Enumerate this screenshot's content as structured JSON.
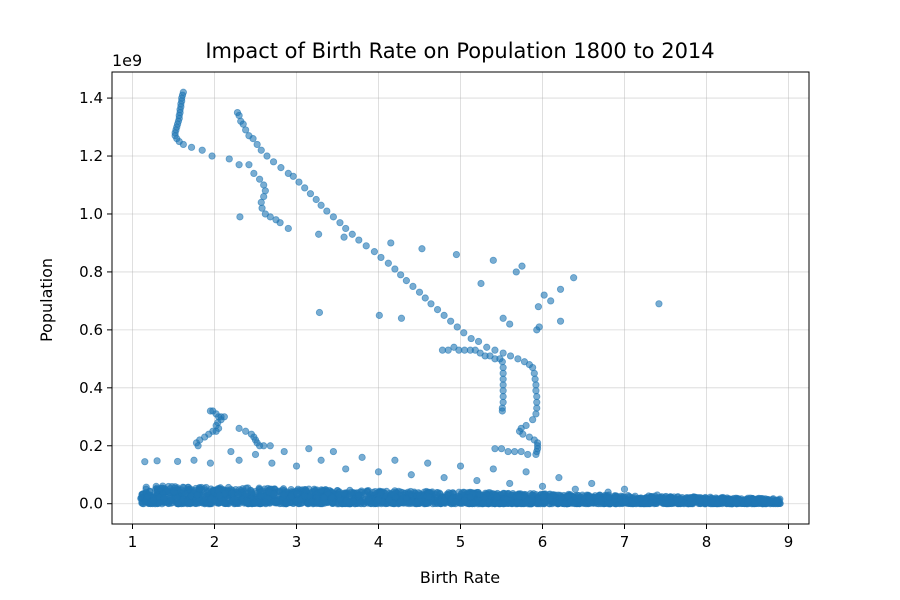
{
  "chart_data": {
    "type": "scatter",
    "title": "Impact of Birth Rate on Population 1800 to 2014",
    "xlabel": "Birth Rate",
    "ylabel": "Population",
    "y_scale_label": "1e9",
    "xlim": [
      0.75,
      9.25
    ],
    "ylim": [
      -0.07,
      1.49
    ],
    "xticks": [
      1,
      2,
      3,
      4,
      5,
      6,
      7,
      8,
      9
    ],
    "yticks": [
      0.0,
      0.2,
      0.4,
      0.6,
      0.8,
      1.0,
      1.2,
      1.4
    ],
    "ytick_labels": [
      "0.0",
      "0.2",
      "0.4",
      "0.6",
      "0.8",
      "1.0",
      "1.2",
      "1.4"
    ],
    "y_units": "billions (x 1e9)",
    "grid": true,
    "marker_color": "#1f77b4",
    "marker_opacity": 0.6,
    "series": [
      {
        "points": [
          [
            1.62,
            1.42
          ],
          [
            1.61,
            1.41
          ],
          [
            1.6,
            1.4
          ],
          [
            1.6,
            1.39
          ],
          [
            1.59,
            1.38
          ],
          [
            1.59,
            1.37
          ],
          [
            1.58,
            1.36
          ],
          [
            1.58,
            1.35
          ],
          [
            1.57,
            1.34
          ],
          [
            1.57,
            1.33
          ],
          [
            1.56,
            1.32
          ],
          [
            1.55,
            1.31
          ],
          [
            1.54,
            1.3
          ],
          [
            1.53,
            1.29
          ],
          [
            1.52,
            1.28
          ],
          [
            1.52,
            1.27
          ],
          [
            1.54,
            1.26
          ],
          [
            1.57,
            1.25
          ],
          [
            1.62,
            1.24
          ],
          [
            1.72,
            1.23
          ],
          [
            1.85,
            1.22
          ],
          [
            1.97,
            1.2
          ],
          [
            2.18,
            1.19
          ],
          [
            2.3,
            1.17
          ],
          [
            2.28,
            1.35
          ],
          [
            2.3,
            1.34
          ],
          [
            2.32,
            1.32
          ],
          [
            2.35,
            1.31
          ],
          [
            2.38,
            1.29
          ],
          [
            2.42,
            1.27
          ],
          [
            2.47,
            1.26
          ],
          [
            2.52,
            1.24
          ],
          [
            2.57,
            1.22
          ],
          [
            2.64,
            1.2
          ],
          [
            2.72,
            1.18
          ],
          [
            2.81,
            1.16
          ],
          [
            2.9,
            1.14
          ],
          [
            2.96,
            1.13
          ],
          [
            3.03,
            1.11
          ],
          [
            3.1,
            1.09
          ],
          [
            3.17,
            1.07
          ],
          [
            3.24,
            1.05
          ],
          [
            3.3,
            1.03
          ],
          [
            3.37,
            1.01
          ],
          [
            3.45,
            0.99
          ],
          [
            3.53,
            0.97
          ],
          [
            3.6,
            0.95
          ],
          [
            3.68,
            0.93
          ],
          [
            3.76,
            0.91
          ],
          [
            3.85,
            0.89
          ],
          [
            3.95,
            0.87
          ],
          [
            4.03,
            0.85
          ],
          [
            4.12,
            0.83
          ],
          [
            4.2,
            0.81
          ],
          [
            4.27,
            0.79
          ],
          [
            4.34,
            0.77
          ],
          [
            4.42,
            0.75
          ],
          [
            4.5,
            0.73
          ],
          [
            4.57,
            0.71
          ],
          [
            4.64,
            0.69
          ],
          [
            4.72,
            0.67
          ],
          [
            4.8,
            0.65
          ],
          [
            4.88,
            0.63
          ],
          [
            4.96,
            0.61
          ],
          [
            5.04,
            0.59
          ],
          [
            5.13,
            0.57
          ],
          [
            5.22,
            0.56
          ],
          [
            5.32,
            0.54
          ],
          [
            5.42,
            0.53
          ],
          [
            5.52,
            0.52
          ],
          [
            5.61,
            0.51
          ],
          [
            5.7,
            0.5
          ],
          [
            5.78,
            0.49
          ],
          [
            5.84,
            0.48
          ],
          [
            5.88,
            0.47
          ],
          [
            5.9,
            0.45
          ],
          [
            5.91,
            0.43
          ],
          [
            5.92,
            0.41
          ],
          [
            5.92,
            0.39
          ],
          [
            5.93,
            0.37
          ],
          [
            5.93,
            0.35
          ],
          [
            5.93,
            0.33
          ],
          [
            5.92,
            0.31
          ],
          [
            5.88,
            0.29
          ],
          [
            5.8,
            0.27
          ],
          [
            5.74,
            0.26
          ],
          [
            5.72,
            0.25
          ],
          [
            5.76,
            0.24
          ],
          [
            5.84,
            0.23
          ],
          [
            5.9,
            0.22
          ],
          [
            5.94,
            0.21
          ],
          [
            5.94,
            0.2
          ],
          [
            5.94,
            0.19
          ],
          [
            5.93,
            0.18
          ],
          [
            5.92,
            0.17
          ],
          [
            2.42,
            1.17
          ],
          [
            2.48,
            1.14
          ],
          [
            2.55,
            1.12
          ],
          [
            2.6,
            1.1
          ],
          [
            2.62,
            1.08
          ],
          [
            2.6,
            1.06
          ],
          [
            2.57,
            1.04
          ],
          [
            2.58,
            1.02
          ],
          [
            2.62,
            1.0
          ],
          [
            2.68,
            0.99
          ],
          [
            2.75,
            0.98
          ],
          [
            2.8,
            0.97
          ],
          [
            2.9,
            0.95
          ],
          [
            2.31,
            0.99
          ],
          [
            3.27,
            0.93
          ],
          [
            3.58,
            0.92
          ],
          [
            4.15,
            0.9
          ],
          [
            4.53,
            0.88
          ],
          [
            4.95,
            0.86
          ],
          [
            5.25,
            0.76
          ],
          [
            5.4,
            0.84
          ],
          [
            5.68,
            0.8
          ],
          [
            5.75,
            0.82
          ],
          [
            5.52,
            0.64
          ],
          [
            5.6,
            0.62
          ],
          [
            5.95,
            0.68
          ],
          [
            6.02,
            0.72
          ],
          [
            6.1,
            0.7
          ],
          [
            6.22,
            0.74
          ],
          [
            6.38,
            0.78
          ],
          [
            6.22,
            0.63
          ],
          [
            5.96,
            0.61
          ],
          [
            5.93,
            0.6
          ],
          [
            7.42,
            0.69
          ],
          [
            3.28,
            0.66
          ],
          [
            4.01,
            0.65
          ],
          [
            4.28,
            0.64
          ],
          [
            4.78,
            0.53
          ],
          [
            4.85,
            0.53
          ],
          [
            4.92,
            0.54
          ],
          [
            4.98,
            0.53
          ],
          [
            5.05,
            0.53
          ],
          [
            5.12,
            0.53
          ],
          [
            5.18,
            0.53
          ],
          [
            5.24,
            0.52
          ],
          [
            5.3,
            0.51
          ],
          [
            5.36,
            0.51
          ],
          [
            5.42,
            0.5
          ],
          [
            5.48,
            0.5
          ],
          [
            5.51,
            0.49
          ],
          [
            5.52,
            0.47
          ],
          [
            5.52,
            0.45
          ],
          [
            5.52,
            0.43
          ],
          [
            5.52,
            0.41
          ],
          [
            5.52,
            0.39
          ],
          [
            5.52,
            0.37
          ],
          [
            5.52,
            0.35
          ],
          [
            5.51,
            0.33
          ],
          [
            5.51,
            0.32
          ],
          [
            1.95,
            0.32
          ],
          [
            1.98,
            0.32
          ],
          [
            2.02,
            0.31
          ],
          [
            2.05,
            0.3
          ],
          [
            2.08,
            0.3
          ],
          [
            2.12,
            0.3
          ],
          [
            2.08,
            0.29
          ],
          [
            2.04,
            0.28
          ],
          [
            2.02,
            0.27
          ],
          [
            2.05,
            0.26
          ],
          [
            2.02,
            0.25
          ],
          [
            1.98,
            0.25
          ],
          [
            1.93,
            0.24
          ],
          [
            1.88,
            0.23
          ],
          [
            1.82,
            0.22
          ],
          [
            1.78,
            0.21
          ],
          [
            1.8,
            0.2
          ],
          [
            2.3,
            0.26
          ],
          [
            2.38,
            0.25
          ],
          [
            2.45,
            0.24
          ],
          [
            2.48,
            0.23
          ],
          [
            2.5,
            0.22
          ],
          [
            2.52,
            0.21
          ],
          [
            2.55,
            0.2
          ],
          [
            2.6,
            0.2
          ],
          [
            2.68,
            0.2
          ],
          [
            5.42,
            0.19
          ],
          [
            5.5,
            0.19
          ],
          [
            5.58,
            0.18
          ],
          [
            5.66,
            0.18
          ],
          [
            5.74,
            0.18
          ],
          [
            5.82,
            0.17
          ],
          [
            1.15,
            0.145
          ],
          [
            1.3,
            0.148
          ],
          [
            1.55,
            0.146
          ],
          [
            1.75,
            0.15
          ],
          [
            1.95,
            0.14
          ],
          [
            2.2,
            0.18
          ],
          [
            2.5,
            0.17
          ],
          [
            2.85,
            0.18
          ],
          [
            3.15,
            0.19
          ],
          [
            3.45,
            0.18
          ],
          [
            3.8,
            0.16
          ],
          [
            4.2,
            0.15
          ],
          [
            4.6,
            0.14
          ],
          [
            5.0,
            0.13
          ],
          [
            5.4,
            0.12
          ],
          [
            5.8,
            0.11
          ],
          [
            6.2,
            0.09
          ],
          [
            6.6,
            0.07
          ],
          [
            7.0,
            0.05
          ],
          [
            7.4,
            0.03
          ],
          [
            7.8,
            0.02
          ],
          [
            8.2,
            0.01
          ],
          [
            8.5,
            0.005
          ],
          [
            8.7,
            0.01
          ],
          [
            8.85,
            0.008
          ],
          [
            2.3,
            0.15
          ],
          [
            2.7,
            0.14
          ],
          [
            3.0,
            0.13
          ],
          [
            3.3,
            0.15
          ],
          [
            3.6,
            0.12
          ],
          [
            4.0,
            0.11
          ],
          [
            4.4,
            0.1
          ],
          [
            4.8,
            0.09
          ],
          [
            5.2,
            0.08
          ],
          [
            5.6,
            0.07
          ],
          [
            6.0,
            0.06
          ],
          [
            6.4,
            0.05
          ],
          [
            6.8,
            0.04
          ],
          [
            7.2,
            0.02
          ]
        ],
        "dense_band": {
          "x_range": [
            1.1,
            8.9
          ],
          "y_range": [
            0.0,
            0.05
          ]
        }
      }
    ]
  }
}
